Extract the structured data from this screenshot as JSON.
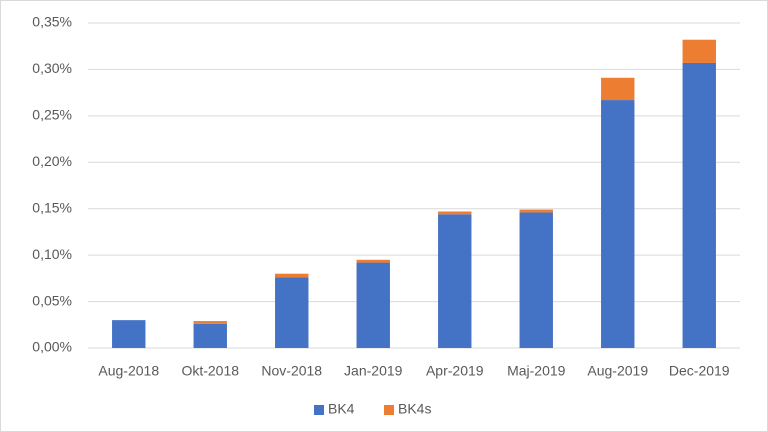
{
  "chart_data": {
    "type": "stacked_bar",
    "categories": [
      "Aug-2018",
      "Okt-2018",
      "Nov-2018",
      "Jan-2019",
      "Apr-2019",
      "Maj-2019",
      "Aug-2019",
      "Dec-2019"
    ],
    "series": [
      {
        "name": "BK4",
        "color": "#4472c4",
        "values": [
          0.03,
          0.026,
          0.076,
          0.092,
          0.144,
          0.146,
          0.267,
          0.307
        ]
      },
      {
        "name": "BK4s",
        "color": "#ed7d31",
        "values": [
          0,
          0.003,
          0.004,
          0.003,
          0.003,
          0.003,
          0.024,
          0.025
        ]
      }
    ],
    "ylim": [
      0,
      0.35
    ],
    "yticks": [
      {
        "value": 0,
        "label": "0,00%"
      },
      {
        "value": 0.05,
        "label": "0,05%"
      },
      {
        "value": 0.1,
        "label": "0,10%"
      },
      {
        "value": 0.15,
        "label": "0,15%"
      },
      {
        "value": 0.2,
        "label": "0,20%"
      },
      {
        "value": 0.25,
        "label": "0,25%"
      },
      {
        "value": 0.3,
        "label": "0,30%"
      },
      {
        "value": 0.35,
        "label": "0,35%"
      }
    ],
    "grid": true,
    "legend": "bottom"
  }
}
